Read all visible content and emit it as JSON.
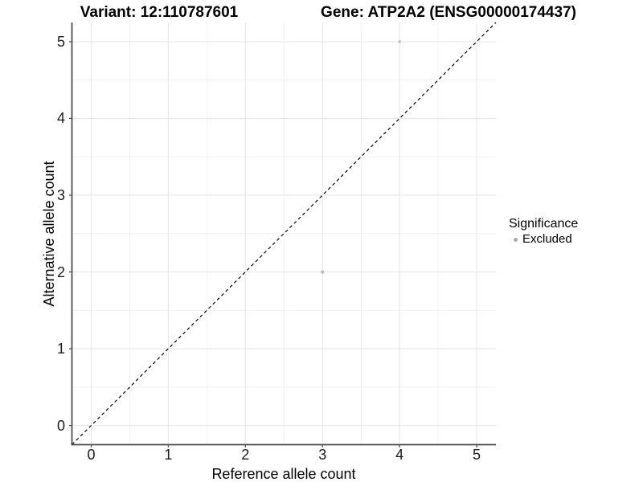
{
  "header": {
    "title_left": "Variant: 12:110787601",
    "title_right": "Gene: ATP2A2 (ENSG00000174437)"
  },
  "chart_data": {
    "type": "scatter",
    "title": "Variant: 12:110787601",
    "subtitle": "Gene: ATP2A2 (ENSG00000174437)",
    "xlabel": "Reference allele count",
    "ylabel": "Alternative allele count",
    "xlim": [
      -0.25,
      5.25
    ],
    "ylim": [
      -0.25,
      5.25
    ],
    "x_ticks": [
      "0",
      "1",
      "2",
      "3",
      "4",
      "5"
    ],
    "y_ticks": [
      "0",
      "1",
      "2",
      "3",
      "4",
      "5"
    ],
    "x_tick_values": [
      0,
      1,
      2,
      3,
      4,
      5
    ],
    "y_tick_values": [
      0,
      1,
      2,
      3,
      4,
      5
    ],
    "minor_tick_values": [
      0.5,
      1.5,
      2.5,
      3.5,
      4.5
    ],
    "grid": "major+minor",
    "series": [
      {
        "name": "Excluded",
        "points": [
          {
            "x": 4,
            "y": 5,
            "r": 1.8
          },
          {
            "x": 3,
            "y": 2,
            "r": 2.2
          }
        ]
      }
    ],
    "reference_line": {
      "type": "identity y=x",
      "style": "dashed",
      "color": "#000000"
    },
    "legend": {
      "title": "Significance",
      "position": "right",
      "entries": [
        {
          "label": "Excluded",
          "color": "#a9a9a9"
        }
      ]
    }
  },
  "colors": {
    "background": "#ffffff",
    "point": "#bfbfbf",
    "legend_key": "#a9a9a9",
    "axis_line": "#4d4d4d",
    "tick_mark": "#4d4d4d",
    "grid_major": "#e6e6e6",
    "grid_minor": "#f0f0f0",
    "title_text": "#000000",
    "axis_text": "#1a1a1a",
    "identity_line": "#000000"
  }
}
